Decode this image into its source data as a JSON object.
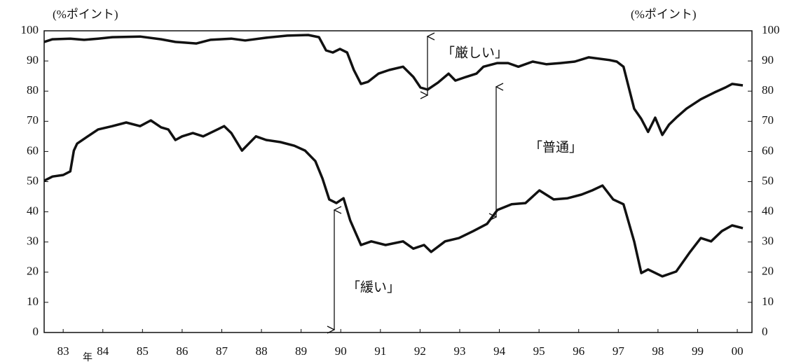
{
  "chart_data": {
    "type": "line",
    "y_unit_left": "(%ポイント)",
    "y_unit_right": "(%ポイント)",
    "x_unit": "年",
    "annotations": [
      "「厳しい」",
      "「普通」",
      "「緩い」"
    ],
    "xlim": [
      1982.52,
      2000.37
    ],
    "xticks": [
      {
        "value": 1983,
        "label": "83"
      },
      {
        "value": 1984,
        "label": "84"
      },
      {
        "value": 1985,
        "label": "85"
      },
      {
        "value": 1986,
        "label": "86"
      },
      {
        "value": 1987,
        "label": "87"
      },
      {
        "value": 1988,
        "label": "88"
      },
      {
        "value": 1989,
        "label": "89"
      },
      {
        "value": 1990,
        "label": "90"
      },
      {
        "value": 1991,
        "label": "91"
      },
      {
        "value": 1992,
        "label": "92"
      },
      {
        "value": 1993,
        "label": "93"
      },
      {
        "value": 1994,
        "label": "94"
      },
      {
        "value": 1995,
        "label": "95"
      },
      {
        "value": 1996,
        "label": "96"
      },
      {
        "value": 1997,
        "label": "97"
      },
      {
        "value": 1998,
        "label": "98"
      },
      {
        "value": 1999,
        "label": "99"
      },
      {
        "value": 2000,
        "label": "00"
      }
    ],
    "ylim": [
      0,
      100
    ],
    "yticks": [
      0,
      10,
      20,
      30,
      40,
      50,
      60,
      70,
      80,
      90,
      100
    ],
    "y2lim": [
      0,
      100
    ],
    "y2ticks": [
      0,
      10,
      20,
      30,
      40,
      50,
      60,
      70,
      80,
      90,
      100
    ],
    "grid": false,
    "series": [
      {
        "color": "#111111",
        "x": [
          1982.52,
          1982.73,
          1983.18,
          1983.53,
          1983.88,
          1984.24,
          1984.94,
          1985.47,
          1985.83,
          1986.36,
          1986.71,
          1987.24,
          1987.59,
          1988.12,
          1988.65,
          1989.18,
          1989.45,
          1989.63,
          1989.8,
          1989.98,
          1990.16,
          1990.33,
          1990.51,
          1990.69,
          1990.95,
          1991.22,
          1991.57,
          1991.83,
          1992.01,
          1992.19,
          1992.45,
          1992.72,
          1992.89,
          1993.16,
          1993.42,
          1993.6,
          1993.95,
          1994.22,
          1994.48,
          1994.84,
          1995.19,
          1995.54,
          1995.9,
          1996.25,
          1996.78,
          1996.96,
          1997.13,
          1997.4,
          1997.58,
          1997.75,
          1997.93,
          1998.11,
          1998.28,
          1998.46,
          1998.72,
          1999.08,
          1999.43,
          1999.7,
          1999.87,
          2000.14
        ],
        "values": [
          96.3,
          97.2,
          97.4,
          97.0,
          97.4,
          97.9,
          98.1,
          97.2,
          96.3,
          95.8,
          97.0,
          97.4,
          96.8,
          97.7,
          98.4,
          98.6,
          97.9,
          93.5,
          92.8,
          94.0,
          92.8,
          87.0,
          82.4,
          83.1,
          85.8,
          87.0,
          88.1,
          84.7,
          81.2,
          80.5,
          82.8,
          85.8,
          83.5,
          84.7,
          85.8,
          88.1,
          89.3,
          89.3,
          88.1,
          89.8,
          88.9,
          89.3,
          89.8,
          91.2,
          90.3,
          89.8,
          88.1,
          74.2,
          70.8,
          66.5,
          71.2,
          65.5,
          68.9,
          71.2,
          74.2,
          77.3,
          79.6,
          81.2,
          82.4,
          81.9
        ]
      },
      {
        "color": "#111111",
        "x": [
          1982.52,
          1982.73,
          1983.0,
          1983.18,
          1983.27,
          1983.35,
          1983.62,
          1983.88,
          1984.24,
          1984.59,
          1984.94,
          1985.21,
          1985.47,
          1985.65,
          1985.83,
          1986.0,
          1986.27,
          1986.53,
          1986.89,
          1987.06,
          1987.24,
          1987.51,
          1987.68,
          1987.86,
          1988.12,
          1988.48,
          1988.83,
          1989.1,
          1989.36,
          1989.54,
          1989.71,
          1989.89,
          1990.07,
          1990.24,
          1990.51,
          1990.77,
          1991.13,
          1991.57,
          1991.83,
          1992.1,
          1992.28,
          1992.63,
          1992.98,
          1993.34,
          1993.69,
          1993.95,
          1994.31,
          1994.66,
          1995.01,
          1995.37,
          1995.72,
          1996.07,
          1996.34,
          1996.6,
          1996.87,
          1997.13,
          1997.4,
          1997.58,
          1997.75,
          1998.11,
          1998.46,
          1998.81,
          1999.08,
          1999.34,
          1999.61,
          1999.87,
          2000.14
        ],
        "values": [
          50.3,
          51.7,
          52.2,
          53.4,
          60.3,
          62.6,
          65.0,
          67.3,
          68.4,
          69.6,
          68.4,
          70.3,
          68.0,
          67.3,
          63.8,
          65.0,
          66.1,
          65.0,
          67.3,
          68.4,
          66.1,
          60.3,
          62.6,
          65.0,
          63.8,
          63.1,
          61.9,
          60.3,
          56.8,
          51.0,
          44.1,
          42.9,
          44.5,
          37.1,
          29.0,
          30.2,
          29.0,
          30.2,
          27.8,
          29.0,
          26.7,
          30.2,
          31.3,
          33.6,
          36.0,
          40.6,
          42.5,
          42.9,
          47.1,
          44.1,
          44.5,
          45.7,
          47.1,
          48.7,
          44.1,
          42.5,
          30.2,
          19.7,
          20.9,
          18.6,
          20.2,
          26.7,
          31.3,
          30.2,
          33.6,
          35.5,
          34.6
        ]
      }
    ]
  }
}
